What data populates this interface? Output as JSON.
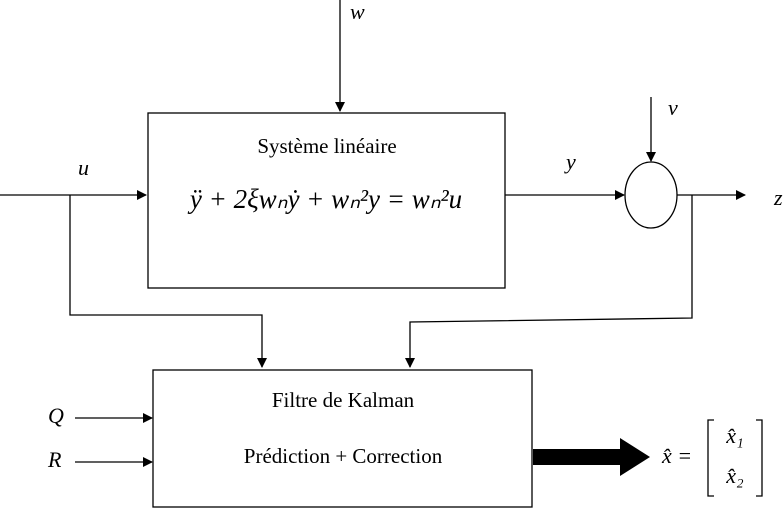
{
  "inputs": {
    "w": "w",
    "v": "v",
    "u": "u",
    "Q": "Q",
    "R": "R"
  },
  "signals": {
    "y": "y",
    "z": "z"
  },
  "system": {
    "title": "Système linéaire",
    "equation": "ÿ + 2ξwₙẏ + wₙ²y = wₙ²u"
  },
  "filter": {
    "title": "Filtre de Kalman",
    "subtitle": "Prédiction + Correction"
  },
  "output": {
    "lhs": "x̂ =",
    "x1": "x̂₁",
    "x2": "x̂₂"
  }
}
